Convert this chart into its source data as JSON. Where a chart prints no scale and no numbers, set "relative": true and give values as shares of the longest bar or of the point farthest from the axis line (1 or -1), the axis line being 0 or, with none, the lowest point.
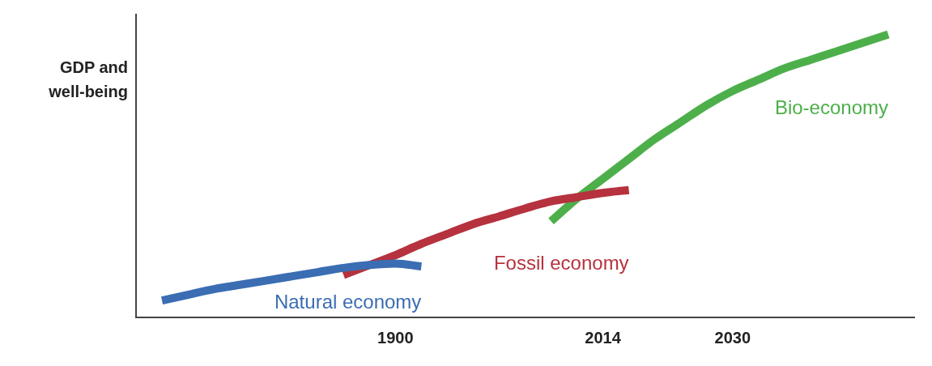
{
  "chart_data": {
    "type": "line",
    "relative": true,
    "ylabel": "GDP and well-being",
    "grid": false,
    "legend": false,
    "marker": "none",
    "line_style": "solid",
    "categories": [
      null,
      null,
      null,
      null,
      null,
      null,
      null,
      null,
      null,
      null,
      "1900",
      null,
      null,
      null,
      null,
      null,
      null,
      null,
      "2014",
      null,
      null,
      null,
      null,
      "2030",
      null,
      null,
      null,
      null,
      null,
      null,
      null
    ],
    "series": [
      {
        "name": "Natural economy",
        "color": "#3b6db3",
        "values": [
          null,
          0.06,
          0.08,
          0.1,
          0.115,
          0.13,
          0.145,
          0.16,
          0.175,
          0.185,
          0.19,
          0.18,
          null,
          null,
          null,
          null,
          null,
          null,
          null,
          null,
          null,
          null,
          null,
          null,
          null,
          null,
          null,
          null,
          null,
          null,
          null
        ]
      },
      {
        "name": "Fossil economy",
        "color": "#b5323e",
        "values": [
          null,
          null,
          null,
          null,
          null,
          null,
          null,
          null,
          0.15,
          0.185,
          0.22,
          0.26,
          0.295,
          0.33,
          0.357,
          0.385,
          0.41,
          0.425,
          0.44,
          0.45,
          null,
          null,
          null,
          null,
          null,
          null,
          null,
          null,
          null,
          null,
          null
        ]
      },
      {
        "name": "Bio-economy",
        "color": "#4daf4a",
        "values": [
          null,
          null,
          null,
          null,
          null,
          null,
          null,
          null,
          null,
          null,
          null,
          null,
          null,
          null,
          null,
          null,
          0.34,
          0.42,
          0.49,
          0.56,
          0.63,
          0.69,
          0.75,
          0.8,
          0.84,
          0.88,
          0.91,
          0.94,
          0.97,
          1.0,
          null
        ]
      }
    ]
  }
}
